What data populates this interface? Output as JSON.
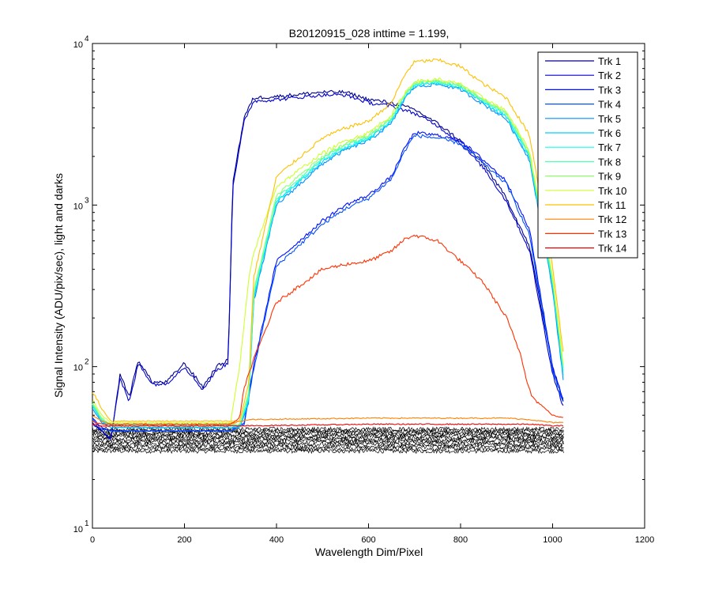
{
  "chart_data": {
    "type": "line",
    "title": "B20120915_028 inttime = 1.199,",
    "xlabel": "Wavelength Dim/Pixel",
    "ylabel": "Signal Intensity (ADU/pix/sec), light and darks",
    "xlim": [
      0,
      1200
    ],
    "ylim": [
      10,
      10000
    ],
    "yscale": "log",
    "xticks": [
      "0",
      "200",
      "400",
      "600",
      "800",
      "1000",
      "1200"
    ],
    "yticks": [
      {
        "base": "10",
        "exp": "1"
      },
      {
        "base": "10",
        "exp": "2"
      },
      {
        "base": "10",
        "exp": "3"
      },
      {
        "base": "10",
        "exp": "4"
      }
    ],
    "legend_position": "top-right",
    "grid": false,
    "series": [
      {
        "name": "Trk 1",
        "color": "#00008f",
        "x": [
          0,
          20,
          40,
          60,
          80,
          100,
          130,
          160,
          200,
          240,
          270,
          295,
          305,
          330,
          350,
          400,
          500,
          550,
          600,
          650,
          700,
          750,
          800,
          850,
          900,
          950,
          1000,
          1025
        ],
        "y": [
          45,
          40,
          35,
          90,
          65,
          110,
          80,
          80,
          105,
          75,
          100,
          110,
          1400,
          3500,
          4600,
          4700,
          5000,
          5000,
          4500,
          4300,
          3900,
          3200,
          2500,
          1800,
          1100,
          550,
          100,
          60
        ]
      },
      {
        "name": "Trk 2",
        "color": "#0000cf",
        "x": [
          0,
          20,
          40,
          60,
          80,
          100,
          130,
          160,
          200,
          240,
          270,
          295,
          305,
          330,
          350,
          400,
          500,
          550,
          600,
          650,
          700,
          750,
          800,
          850,
          900,
          950,
          1000,
          1025
        ],
        "y": [
          44,
          40,
          36,
          85,
          60,
          105,
          78,
          78,
          100,
          72,
          95,
          105,
          1300,
          3300,
          4400,
          4500,
          4800,
          4800,
          4300,
          4100,
          3700,
          3100,
          2400,
          1700,
          1050,
          520,
          90,
          55
        ]
      },
      {
        "name": "Trk 3",
        "color": "#0010ff",
        "x": [
          0,
          20,
          40,
          300,
          330,
          350,
          400,
          500,
          550,
          600,
          650,
          680,
          700,
          750,
          800,
          850,
          900,
          950,
          1000,
          1025
        ],
        "y": [
          48,
          42,
          40,
          40,
          45,
          100,
          450,
          800,
          1000,
          1150,
          1500,
          2300,
          2800,
          2700,
          2500,
          1900,
          1400,
          700,
          100,
          60
        ]
      },
      {
        "name": "Trk 4",
        "color": "#0050ff",
        "x": [
          0,
          20,
          40,
          300,
          330,
          350,
          400,
          500,
          550,
          600,
          650,
          680,
          700,
          750,
          800,
          850,
          900,
          950,
          1000,
          1025
        ],
        "y": [
          47,
          41,
          40,
          40,
          44,
          95,
          420,
          760,
          950,
          1100,
          1450,
          2200,
          2700,
          2600,
          2400,
          1800,
          1350,
          650,
          95,
          58
        ]
      },
      {
        "name": "Trk 5",
        "color": "#0090ff",
        "x": [
          0,
          20,
          40,
          320,
          340,
          350,
          400,
          500,
          550,
          600,
          650,
          680,
          700,
          750,
          800,
          850,
          900,
          950,
          1000,
          1025
        ],
        "y": [
          55,
          45,
          42,
          42,
          60,
          250,
          1000,
          1800,
          2200,
          2500,
          3200,
          4600,
          5400,
          5600,
          5200,
          4200,
          3400,
          1900,
          300,
          75
        ]
      },
      {
        "name": "Trk 6",
        "color": "#00d0ff",
        "x": [
          0,
          20,
          40,
          320,
          340,
          350,
          400,
          500,
          550,
          600,
          650,
          680,
          700,
          750,
          800,
          850,
          900,
          950,
          1000,
          1025
        ],
        "y": [
          57,
          46,
          42,
          42,
          62,
          260,
          1050,
          1850,
          2250,
          2550,
          3300,
          4700,
          5500,
          5700,
          5300,
          4300,
          3500,
          1950,
          320,
          80
        ]
      },
      {
        "name": "Trk 7",
        "color": "#10ffef",
        "x": [
          0,
          20,
          40,
          320,
          340,
          350,
          400,
          500,
          550,
          600,
          650,
          680,
          700,
          750,
          800,
          850,
          900,
          950,
          1000,
          1025
        ],
        "y": [
          58,
          47,
          43,
          43,
          65,
          270,
          1050,
          1900,
          2300,
          2600,
          3400,
          4800,
          5600,
          5800,
          5400,
          4400,
          3600,
          2000,
          330,
          85
        ]
      },
      {
        "name": "Trk 8",
        "color": "#50ffaf",
        "x": [
          0,
          20,
          40,
          320,
          340,
          350,
          400,
          500,
          550,
          600,
          650,
          680,
          700,
          750,
          800,
          850,
          900,
          950,
          1000,
          1025
        ],
        "y": [
          59,
          47,
          43,
          43,
          66,
          280,
          1100,
          1950,
          2350,
          2650,
          3450,
          4850,
          5650,
          5850,
          5450,
          4450,
          3650,
          2050,
          340,
          88
        ]
      },
      {
        "name": "Trk 9",
        "color": "#90ff6f",
        "x": [
          0,
          20,
          40,
          320,
          340,
          350,
          400,
          500,
          550,
          600,
          650,
          680,
          700,
          750,
          800,
          850,
          900,
          950,
          1000,
          1025
        ],
        "y": [
          60,
          48,
          44,
          44,
          70,
          290,
          1150,
          2000,
          2400,
          2700,
          3500,
          4900,
          5700,
          5900,
          5500,
          4500,
          3700,
          2100,
          350,
          90
        ]
      },
      {
        "name": "Trk 10",
        "color": "#cfff30",
        "x": [
          0,
          20,
          40,
          300,
          320,
          340,
          350,
          400,
          500,
          550,
          600,
          650,
          680,
          700,
          750,
          800,
          850,
          900,
          950,
          1000,
          1025
        ],
        "y": [
          62,
          50,
          45,
          45,
          100,
          350,
          500,
          1300,
          2100,
          2500,
          2800,
          3600,
          5000,
          5800,
          6000,
          5600,
          4600,
          3800,
          2150,
          360,
          95
        ]
      },
      {
        "name": "Trk 11",
        "color": "#ffc000",
        "x": [
          0,
          20,
          40,
          320,
          340,
          350,
          400,
          500,
          550,
          600,
          650,
          680,
          700,
          750,
          800,
          850,
          900,
          950,
          1000,
          1025
        ],
        "y": [
          70,
          55,
          46,
          46,
          80,
          350,
          1500,
          2600,
          3000,
          3300,
          4300,
          6500,
          7700,
          7900,
          7200,
          5600,
          4600,
          2700,
          420,
          110
        ]
      },
      {
        "name": "Trk 12",
        "color": "#ff8000",
        "x": [
          0,
          20,
          40,
          300,
          320,
          340,
          600,
          700,
          800,
          900,
          950,
          1000,
          1025
        ],
        "y": [
          50,
          46,
          44,
          44,
          46,
          47,
          48,
          48,
          48,
          48,
          47,
          45,
          45
        ]
      },
      {
        "name": "Trk 13",
        "color": "#ff3000",
        "x": [
          0,
          20,
          40,
          300,
          320,
          330,
          350,
          400,
          500,
          550,
          600,
          650,
          680,
          700,
          750,
          800,
          850,
          900,
          930,
          945,
          950,
          955,
          1000,
          1025
        ],
        "y": [
          46,
          44,
          44,
          44,
          48,
          75,
          110,
          250,
          400,
          430,
          450,
          520,
          620,
          650,
          600,
          450,
          330,
          200,
          120,
          80,
          75,
          65,
          50,
          48
        ]
      },
      {
        "name": "Trk 14",
        "color": "#ef0000",
        "x": [
          0,
          20,
          40,
          300,
          340,
          600,
          700,
          800,
          900,
          950,
          1000,
          1025
        ],
        "y": [
          44,
          43,
          43,
          43,
          43,
          44,
          44,
          44,
          44,
          44,
          43,
          43
        ]
      }
    ],
    "dark_frames": {
      "color": "#000000",
      "x_range": [
        0,
        1024
      ],
      "y_levels": [
        30,
        31,
        32,
        33,
        34,
        35,
        36,
        37,
        38,
        39,
        40,
        41
      ]
    }
  }
}
